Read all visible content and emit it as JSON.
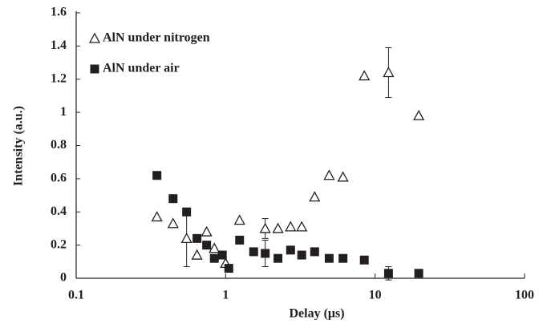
{
  "chart_data": {
    "type": "scatter",
    "xlabel": "Delay (μs)",
    "ylabel": "Intensity (a.u.)",
    "xscale": "log",
    "xlim": [
      0.1,
      100
    ],
    "xticks": [
      0.1,
      1,
      10,
      100
    ],
    "ylim": [
      0,
      1.6
    ],
    "yticks": [
      0,
      0.2,
      0.4,
      0.6,
      0.8,
      1,
      1.2,
      1.4,
      1.6
    ],
    "grid": false,
    "legend": "upper left",
    "series": [
      {
        "name": "AlN under nitrogen",
        "color": "#231f20",
        "marker": "open-triangle",
        "x": [
          0.347,
          0.445,
          0.548,
          0.643,
          0.746,
          0.84,
          1.0,
          1.24,
          1.84,
          2.24,
          2.72,
          3.23,
          3.94,
          4.93,
          6.1,
          8.47,
          12.3,
          19.6
        ],
        "values": [
          0.37,
          0.33,
          0.24,
          0.14,
          0.28,
          0.18,
          0.09,
          0.35,
          0.3,
          0.3,
          0.31,
          0.31,
          0.49,
          0.62,
          0.61,
          1.22,
          1.24,
          0.98
        ],
        "yerr": [
          null,
          null,
          0.17,
          null,
          null,
          null,
          null,
          null,
          0.06,
          null,
          null,
          null,
          null,
          null,
          null,
          null,
          0.15,
          null
        ]
      },
      {
        "name": "AlN under air",
        "color": "#231f20",
        "marker": "filled-square",
        "x": [
          0.347,
          0.445,
          0.548,
          0.643,
          0.746,
          0.84,
          0.95,
          1.05,
          1.24,
          1.54,
          1.84,
          2.24,
          2.72,
          3.23,
          3.94,
          4.93,
          6.1,
          8.47,
          12.3,
          19.6
        ],
        "values": [
          0.62,
          0.48,
          0.4,
          0.24,
          0.2,
          0.12,
          0.14,
          0.06,
          0.23,
          0.16,
          0.15,
          0.12,
          0.17,
          0.14,
          0.16,
          0.12,
          0.12,
          0.11,
          0.03,
          0.03
        ],
        "yerr": [
          null,
          null,
          null,
          null,
          null,
          null,
          null,
          null,
          null,
          null,
          0.08,
          null,
          null,
          null,
          null,
          null,
          null,
          null,
          0.04,
          null
        ]
      }
    ]
  }
}
